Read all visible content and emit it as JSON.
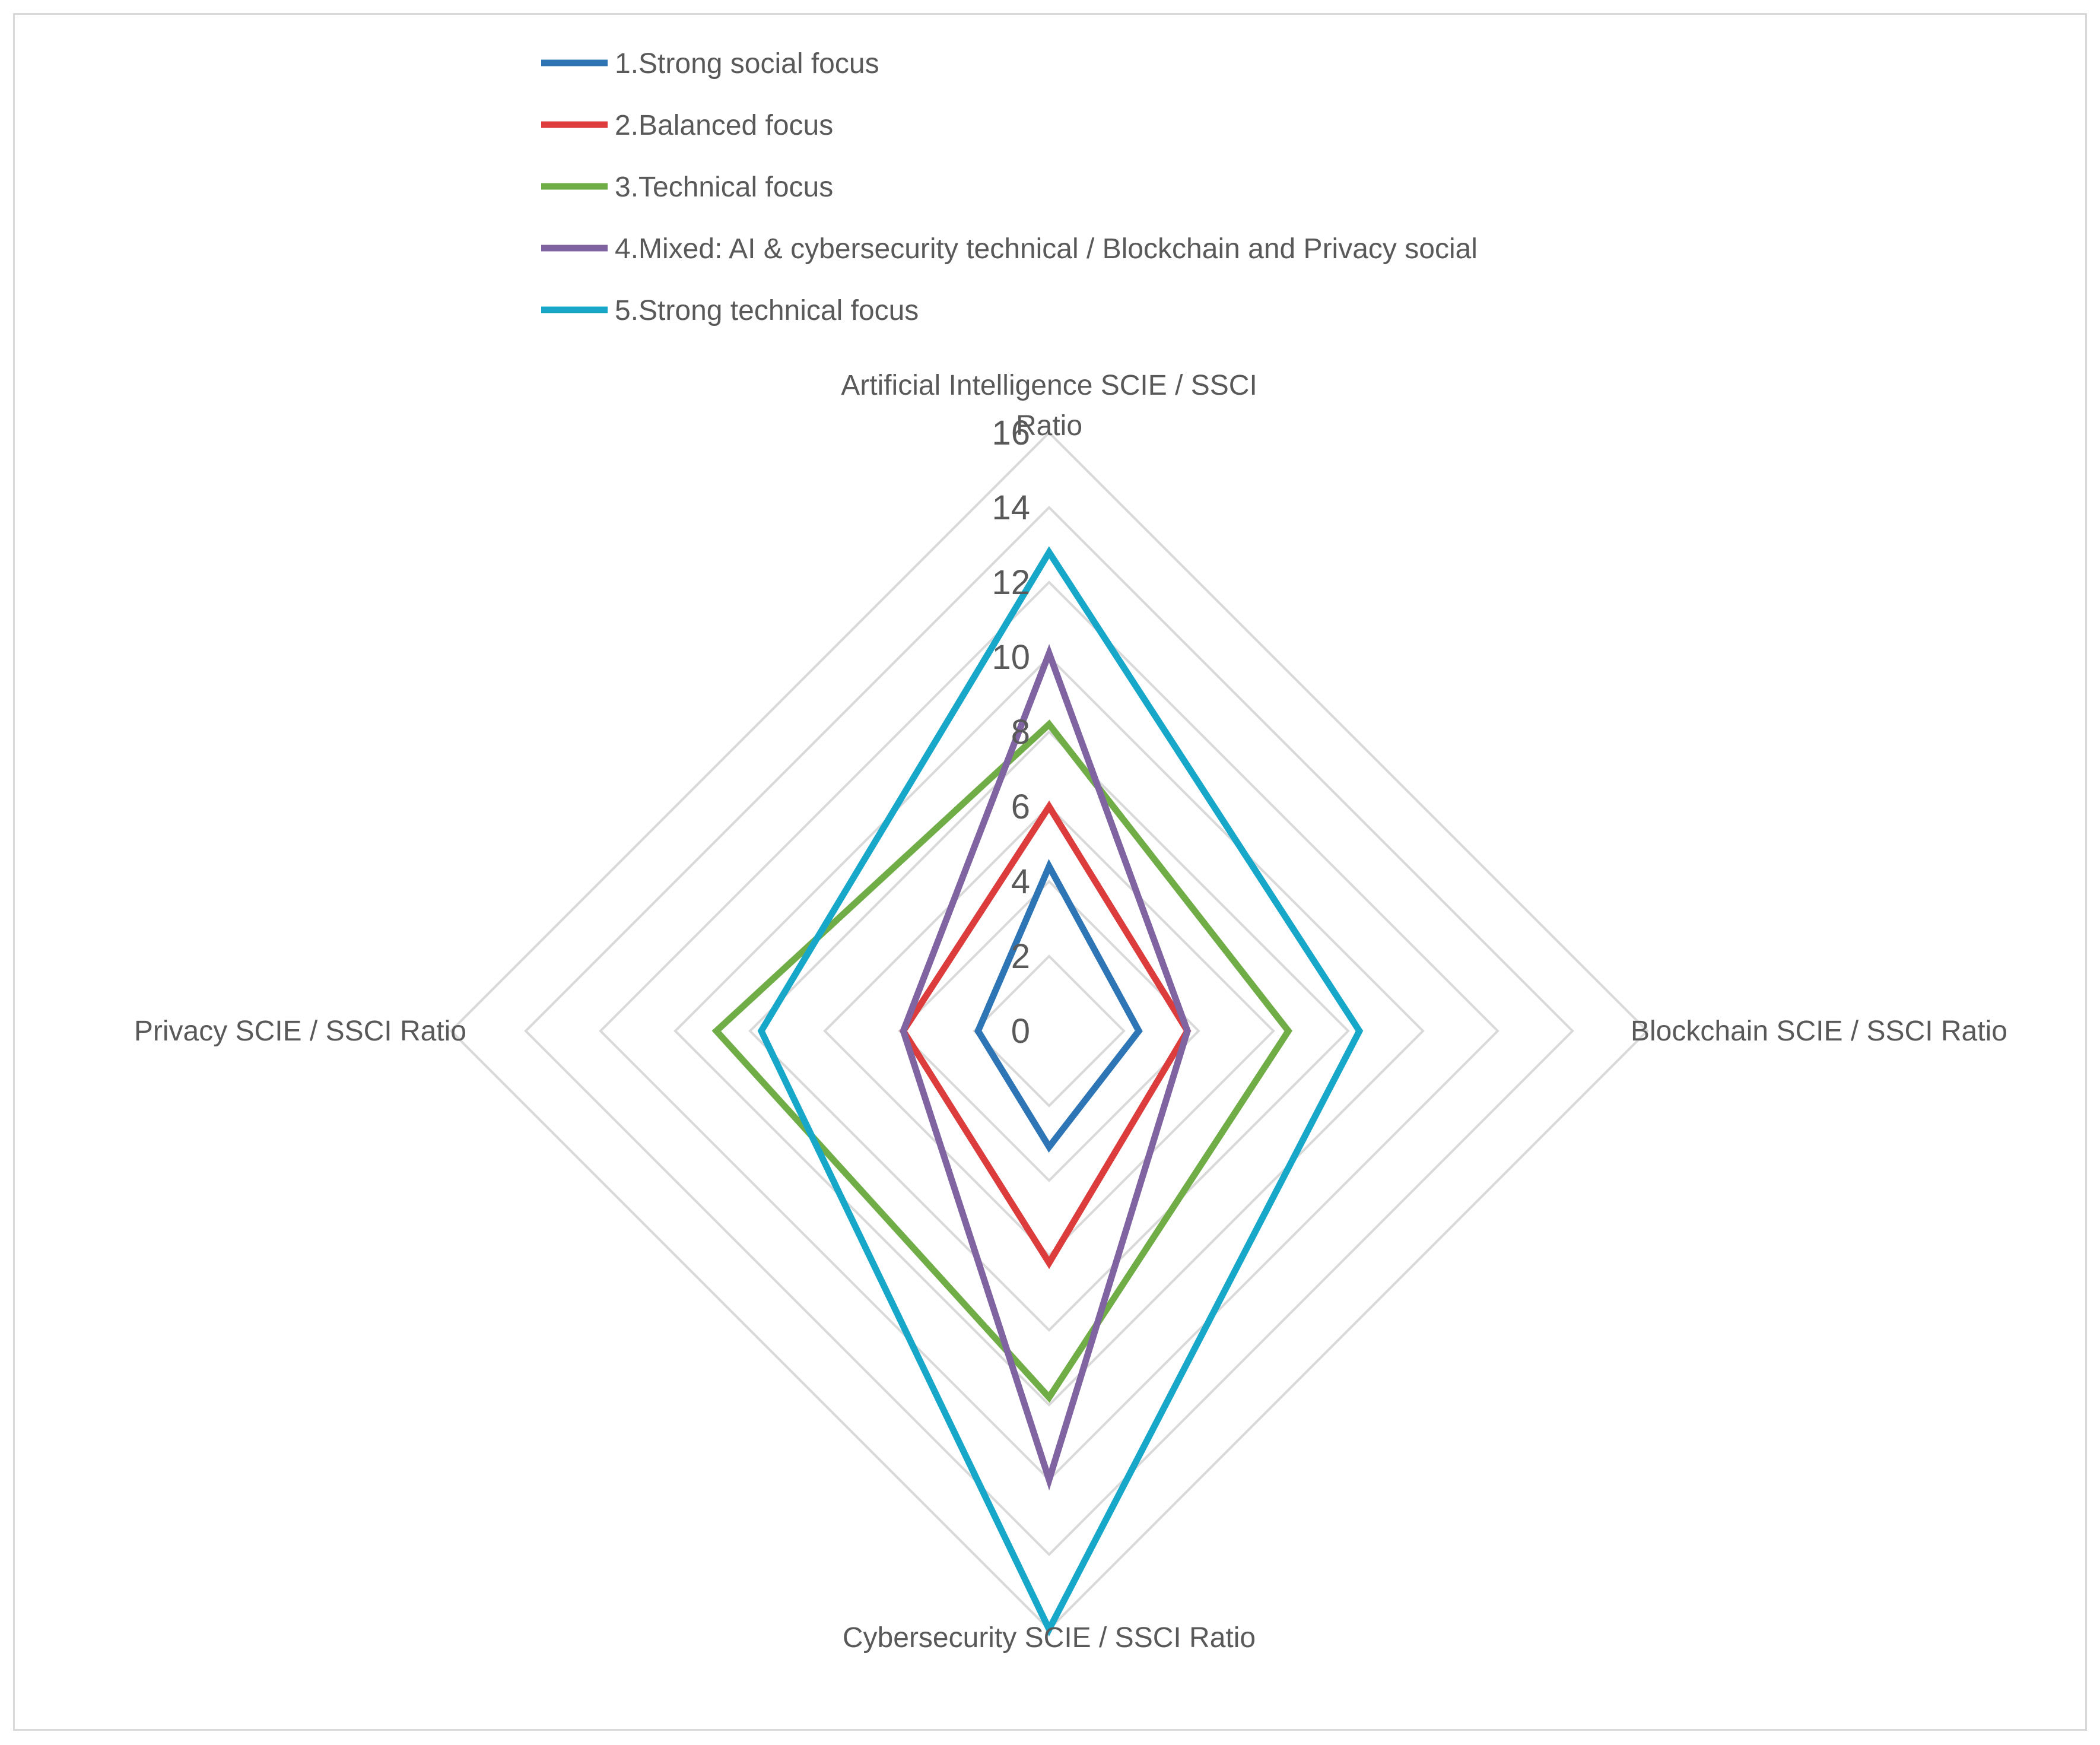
{
  "chart_data": {
    "type": "radar",
    "axes": [
      "Artificial Intelligence SCIE / SSCI Ratio",
      "Blockchain SCIE / SSCI Ratio",
      "Cybersecurity SCIE / SSCI Ratio",
      "Privacy  SCIE / SSCI Ratio"
    ],
    "axis_label_lines": [
      [
        "Artificial Intelligence SCIE / SSCI",
        "Ratio"
      ],
      [
        "Blockchain SCIE / SSCI Ratio"
      ],
      [
        "Cybersecurity SCIE / SSCI Ratio"
      ],
      [
        "Privacy  SCIE / SSCI Ratio"
      ]
    ],
    "rlim": [
      0,
      16
    ],
    "ticks": [
      "0",
      "2",
      "4",
      "6",
      "8",
      "10",
      "12",
      "14",
      "16"
    ],
    "tick_values": [
      0,
      2,
      4,
      6,
      8,
      10,
      12,
      14,
      16
    ],
    "grid": true,
    "legend_position": "top",
    "series": [
      {
        "name": "1.Strong social focus",
        "color": "#2e75b6",
        "values": [
          4.4,
          2.4,
          3.1,
          1.9
        ]
      },
      {
        "name": "2.Balanced focus",
        "color": "#dc3c3c",
        "values": [
          6.0,
          3.7,
          6.2,
          3.9
        ]
      },
      {
        "name": "3.Technical focus",
        "color": "#70ad47",
        "values": [
          8.2,
          6.4,
          9.8,
          8.9
        ]
      },
      {
        "name": "4.Mixed: AI & cybersecurity technical /  Blockchain and Privacy social",
        "color": "#8064a2",
        "values": [
          10.1,
          3.7,
          12.0,
          3.9
        ]
      },
      {
        "name": "5.Strong technical focus",
        "color": "#17a8c9",
        "values": [
          12.8,
          8.3,
          16.0,
          7.7
        ]
      }
    ]
  }
}
